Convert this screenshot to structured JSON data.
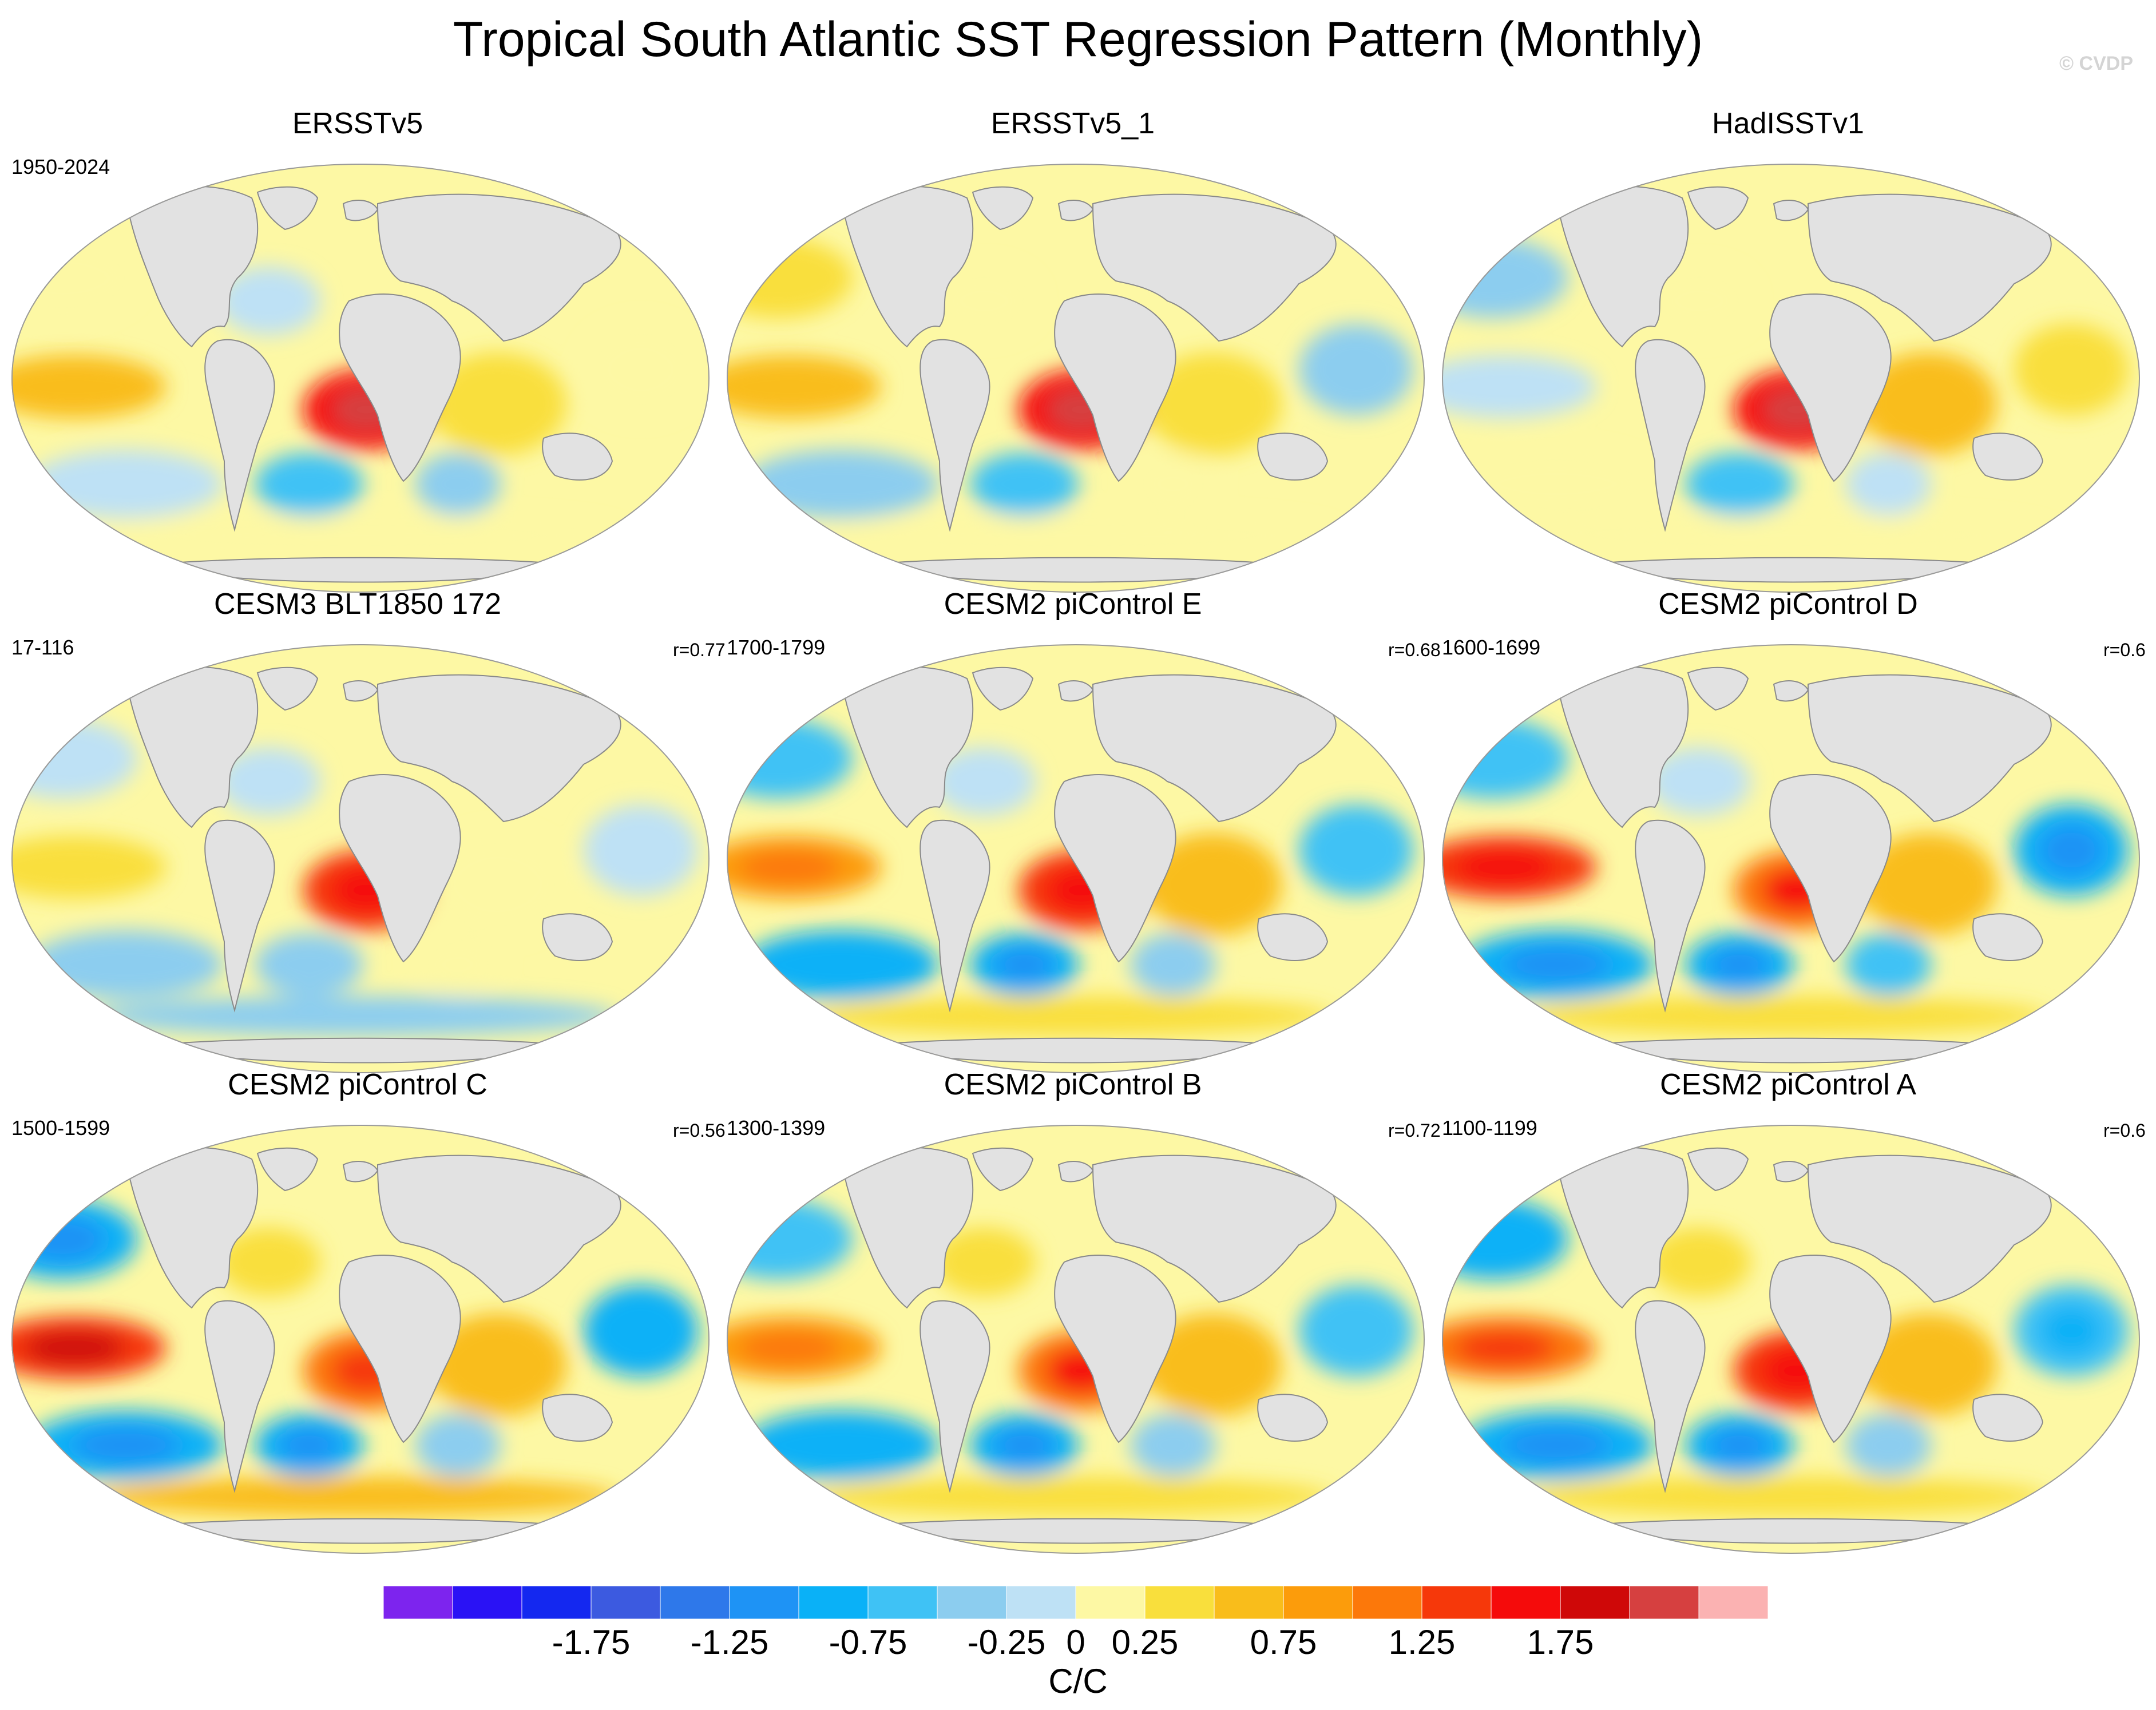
{
  "title": "Tropical South Atlantic SST Regression Pattern (Monthly)",
  "credit": "© CVDP",
  "colors": {
    "land": "#e2e2e2",
    "coast": "#8a8a8a",
    "scale": [
      "#7d24ee",
      "#2a12f5",
      "#1428f0",
      "#3c5ae0",
      "#2e78ea",
      "#1e93f5",
      "#0ab1f7",
      "#3fc2f5",
      "#8ccdef",
      "#bee1f5",
      "#fdf8a4",
      "#f9df3c",
      "#f9bd1b",
      "#fc9c0b",
      "#fc780a",
      "#f6380a",
      "#f50b0b",
      "#cf0808",
      "#d64040",
      "#fbb2b2"
    ]
  },
  "chart_data": {
    "type": "heatmap",
    "variable": "SST regression onto Tropical South Atlantic index",
    "projection": "Robinson (global)",
    "colorbar": {
      "levels": [
        -2.25,
        -2.0,
        -1.75,
        -1.5,
        -1.25,
        -1.0,
        -0.75,
        -0.5,
        -0.25,
        0,
        0.25,
        0.5,
        0.75,
        1.0,
        1.25,
        1.5,
        1.75,
        2.0,
        2.25
      ],
      "tick_labels": [
        "-1.75",
        "-1.25",
        "-0.75",
        "-0.25",
        "0",
        "0.25",
        "0.75",
        "1.25",
        "1.75"
      ],
      "tick_values": [
        -1.75,
        -1.25,
        -0.75,
        -0.25,
        0,
        0.25,
        0.75,
        1.25,
        1.75
      ],
      "units": "C/C"
    },
    "panels": [
      {
        "title": "ERSSTv5",
        "period": "1950-2024",
        "corr": "",
        "region_values": {
          "tsa": 1.6,
          "sa_gyre": -0.6,
          "sio": -0.4,
          "enso": 0.5,
          "npac": 0.15,
          "natl": -0.1,
          "io": 0.35,
          "so": 0.1,
          "wpac": 0.1,
          "spac": -0.2
        }
      },
      {
        "title": "ERSSTv5_1",
        "period": "",
        "corr": "",
        "region_values": {
          "tsa": 1.7,
          "sa_gyre": -0.55,
          "sio": 0.1,
          "enso": 0.55,
          "npac": 0.4,
          "natl": 0.2,
          "io": 0.45,
          "so": 0.15,
          "wpac": -0.45,
          "spac": -0.3
        }
      },
      {
        "title": "HadISSTv1",
        "period": "",
        "corr": "",
        "region_values": {
          "tsa": 1.6,
          "sa_gyre": -0.7,
          "sio": -0.1,
          "enso": -0.15,
          "npac": -0.3,
          "natl": 0.1,
          "io": 0.55,
          "so": 0.05,
          "wpac": 0.3,
          "spac": 0.2
        }
      },
      {
        "title": "CESM3 BLT1850 172",
        "period": "17-116",
        "corr": "r=0.77",
        "region_values": {
          "tsa": 1.35,
          "sa_gyre": -0.4,
          "sio": 0.2,
          "enso": 0.35,
          "npac": -0.25,
          "natl": -0.2,
          "io": 0.2,
          "so": -0.3,
          "wpac": -0.2,
          "spac": -0.35
        }
      },
      {
        "title": "CESM2 piControl E",
        "period": "1700-1799",
        "corr": "r=0.68",
        "region_values": {
          "tsa": 1.3,
          "sa_gyre": -0.9,
          "sio": -0.5,
          "enso": 0.8,
          "npac": -0.6,
          "natl": -0.2,
          "io": 0.5,
          "so": 0.45,
          "wpac": -0.6,
          "spac": -0.8
        }
      },
      {
        "title": "CESM2 piControl D",
        "period": "1600-1699",
        "corr": "r=0.6",
        "region_values": {
          "tsa": 1.2,
          "sa_gyre": -0.9,
          "sio": -0.6,
          "enso": 1.3,
          "npac": -0.7,
          "natl": -0.25,
          "io": 0.55,
          "so": 0.35,
          "wpac": -0.9,
          "spac": -1.0
        }
      },
      {
        "title": "CESM2 piControl C",
        "period": "1500-1599",
        "corr": "r=0.56",
        "region_values": {
          "tsa": 1.15,
          "sa_gyre": -1.0,
          "sio": -0.5,
          "enso": 1.45,
          "npac": -0.9,
          "natl": 0.45,
          "io": 0.6,
          "so": 0.5,
          "wpac": -0.8,
          "spac": -0.95
        }
      },
      {
        "title": "CESM2 piControl B",
        "period": "1300-1399",
        "corr": "r=0.72",
        "region_values": {
          "tsa": 1.2,
          "sa_gyre": -0.9,
          "sio": -0.45,
          "enso": 0.95,
          "npac": -0.7,
          "natl": 0.3,
          "io": 0.6,
          "so": 0.4,
          "wpac": -0.7,
          "spac": -0.8
        }
      },
      {
        "title": "CESM2 piControl A",
        "period": "1100-1199",
        "corr": "r=0.6",
        "region_values": {
          "tsa": 1.25,
          "sa_gyre": -1.0,
          "sio": -0.4,
          "enso": 1.0,
          "npac": -0.8,
          "natl": 0.3,
          "io": 0.5,
          "so": 0.45,
          "wpac": -0.75,
          "spac": -0.9
        }
      }
    ]
  }
}
